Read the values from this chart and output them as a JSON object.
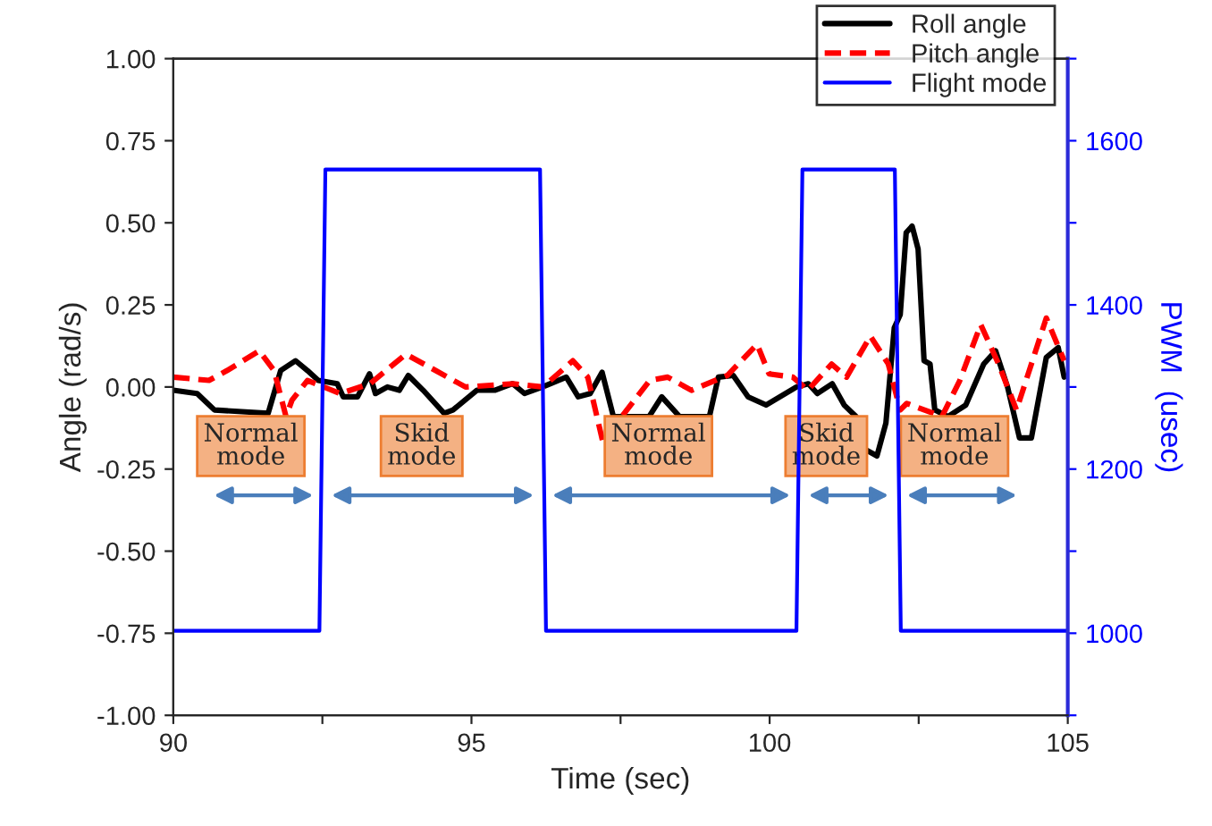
{
  "chart_data": {
    "type": "line",
    "xlabel": "Time (sec)",
    "ylabel": "Angle (rad/s)",
    "y2label": "PWM  (usec)",
    "xlim": [
      90,
      105
    ],
    "xticks": [
      90,
      {
        "value": 92.5,
        "label": null
      },
      95,
      {
        "value": 97.5,
        "label": null
      },
      100,
      {
        "value": 102.5,
        "label": null
      },
      105
    ],
    "ylim": [
      -1.0,
      1.0
    ],
    "yticks": [
      {
        "value": -1.0,
        "label": "-1.00"
      },
      {
        "value": -0.75,
        "label": "-0.75"
      },
      {
        "value": -0.5,
        "label": "-0.50"
      },
      {
        "value": -0.25,
        "label": "-0.25"
      },
      {
        "value": 0,
        "label": "0.00"
      },
      {
        "value": 0.25,
        "label": "0.25"
      },
      {
        "value": 0.5,
        "label": "0.50"
      },
      {
        "value": 0.75,
        "label": "0.75"
      },
      {
        "value": 1.0,
        "label": "1.00"
      }
    ],
    "y2lim": [
      900,
      1700
    ],
    "y2ticks": [
      {
        "value": 900,
        "label": null
      },
      1000,
      {
        "value": 1100,
        "label": null
      },
      1200,
      {
        "value": 1300,
        "label": null
      },
      1400,
      {
        "value": 1500,
        "label": null
      },
      1600,
      {
        "value": 1700,
        "label": null
      }
    ],
    "legend": "top right",
    "grid": false,
    "series": [
      {
        "name": "Roll angle",
        "color": "#000000",
        "line_style": "solid",
        "x": [
          90.0,
          90.4,
          90.69,
          91.1,
          91.59,
          91.8,
          92.05,
          92.25,
          92.43,
          92.75,
          92.85,
          93.09,
          93.29,
          93.39,
          93.59,
          93.79,
          93.94,
          94.19,
          94.54,
          94.69,
          95.09,
          95.39,
          95.69,
          95.89,
          96.19,
          96.59,
          96.79,
          96.99,
          97.19,
          97.38,
          97.98,
          98.19,
          98.49,
          98.99,
          99.14,
          99.39,
          99.64,
          99.94,
          100.25,
          100.45,
          100.65,
          100.8,
          101.05,
          101.25,
          101.45,
          101.6,
          101.8,
          101.95,
          102.09,
          102.19,
          102.29,
          102.39,
          102.49,
          102.59,
          102.69,
          102.77,
          102.99,
          103.29,
          103.59,
          103.79,
          103.99,
          104.19,
          104.39,
          104.64,
          104.84,
          104.94
        ],
        "values": [
          -0.01,
          -0.02,
          -0.07,
          null,
          -0.08,
          0.05,
          0.08,
          0.05,
          0.02,
          0.01,
          -0.03,
          -0.03,
          0.04,
          -0.02,
          0.0,
          -0.01,
          0.035,
          -0.01,
          -0.08,
          -0.07,
          -0.01,
          -0.01,
          0.01,
          -0.02,
          0.0,
          0.03,
          -0.03,
          -0.02,
          0.045,
          -0.09,
          -0.09,
          -0.03,
          -0.09,
          -0.09,
          0.03,
          0.035,
          -0.03,
          -0.055,
          null,
          0.0,
          0.01,
          -0.02,
          0.01,
          -0.055,
          -0.09,
          -0.19,
          -0.21,
          -0.11,
          0.18,
          0.22,
          0.47,
          0.49,
          0.42,
          0.08,
          0.07,
          -0.07,
          -0.09,
          -0.055,
          0.07,
          0.11,
          0.0,
          -0.155,
          -0.155,
          0.09,
          0.12,
          0.03
        ]
      },
      {
        "name": "Pitch angle",
        "color": "#ff0000",
        "line_style": "dashed",
        "x": [
          90.0,
          90.6,
          90.9,
          91.44,
          91.69,
          91.89,
          91.99,
          92.25,
          92.8,
          93.3,
          93.9,
          94.4,
          94.9,
          95.7,
          96.2,
          96.7,
          96.95,
          97.2,
          97.99,
          98.29,
          98.69,
          99.29,
          99.79,
          99.99,
          100.39,
          100.64,
          101.04,
          101.29,
          101.69,
          101.99,
          102.19,
          102.3,
          102.89,
          103.19,
          103.54,
          103.84,
          104.14,
          104.39,
          104.64,
          104.94
        ],
        "values": [
          0.03,
          0.02,
          0.05,
          0.11,
          0.05,
          -0.09,
          -0.04,
          0.02,
          -0.02,
          0.01,
          0.1,
          0.05,
          0.0,
          0.01,
          0.0,
          0.08,
          0.03,
          -0.165,
          0.02,
          0.03,
          -0.01,
          0.035,
          0.13,
          0.04,
          0.03,
          -0.01,
          0.07,
          0.03,
          0.155,
          0.07,
          -0.07,
          -0.05,
          -0.09,
          0.02,
          0.19,
          0.07,
          -0.07,
          0.07,
          0.21,
          0.08
        ]
      },
      {
        "name": "Flight mode",
        "color": "#0000ff",
        "line_style": "solid",
        "axis": "y2",
        "x": [
          90.0,
          92.45,
          92.55,
          96.15,
          96.25,
          100.45,
          100.55,
          102.1,
          102.2,
          105.0
        ],
        "values": [
          1003,
          1003,
          1565,
          1565,
          1003,
          1003,
          1565,
          1565,
          1003,
          1003
        ]
      }
    ],
    "annotations": [
      "Normal\nmode",
      "Skid\nmode",
      "Normal\nmode",
      "Skid\nmode",
      "Normal\nmode"
    ]
  }
}
